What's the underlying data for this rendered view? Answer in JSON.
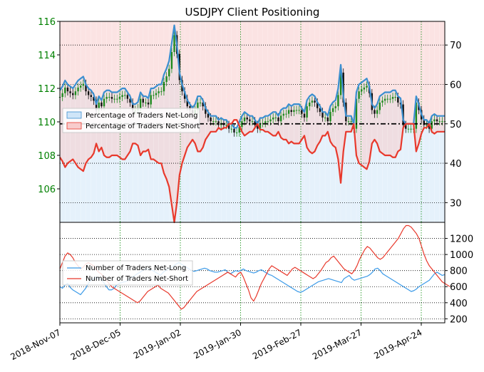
{
  "chart_data": [
    {
      "type": "line",
      "title": "USDJPY Client Positioning",
      "x_ticks": [
        "2018-Nov-07",
        "2018-Dec-05",
        "2019-Jan-02",
        "2019-Jan-30",
        "2019-Feb-27",
        "2019-Mar-27",
        "2019-Apr-24"
      ],
      "y_left_ticks": [
        "106",
        "108",
        "110",
        "112",
        "114",
        "116"
      ],
      "y_left_range": [
        104,
        116
      ],
      "y_right_ticks": [
        "30",
        "40",
        "50",
        "60",
        "70"
      ],
      "y_right_range": [
        25,
        76
      ],
      "left_tick_color": "#008000",
      "reference_line": {
        "value": 50,
        "style": "dash-dot",
        "color": "#000000"
      },
      "legend": {
        "placement": "center-left"
      },
      "series": [
        {
          "name": "Percentage of Traders Net-Long",
          "color": "#3b8fd0",
          "fill": "#cfe5f8",
          "axis": "right",
          "values": [
            58.5,
            59.5,
            61,
            60,
            59.5,
            59,
            60,
            61,
            61.5,
            62,
            60,
            59,
            58.5,
            57.5,
            55,
            57,
            56,
            58,
            58.5,
            58.5,
            58,
            58,
            58,
            58.5,
            59,
            59,
            58,
            57,
            55,
            55,
            55.5,
            58,
            57,
            57,
            56.5,
            59,
            59,
            59.5,
            60,
            60,
            62.5,
            64,
            66,
            70.5,
            75,
            70,
            63,
            60,
            58,
            56,
            55,
            54,
            55,
            57,
            57,
            56,
            54,
            53,
            52,
            52,
            52,
            51,
            51.5,
            51,
            51,
            50,
            50,
            49,
            49,
            50.5,
            52,
            53,
            52.5,
            52,
            52,
            51,
            50,
            51.5,
            51.5,
            52,
            52,
            52.5,
            53,
            53,
            52,
            53.5,
            54,
            54,
            55,
            54.5,
            55,
            55,
            55,
            54,
            53,
            56,
            57,
            57.5,
            57,
            55.5,
            54.5,
            53,
            53,
            52,
            54.5,
            55.5,
            56,
            59,
            65,
            57,
            52,
            52,
            52,
            50,
            58,
            60,
            60.5,
            61,
            61.5,
            59.5,
            55,
            54,
            55,
            57,
            57.5,
            58,
            58,
            58,
            58.5,
            58.5,
            57,
            56.5,
            51,
            50,
            50,
            50,
            50,
            57,
            55,
            52.5,
            51,
            51,
            50,
            52,
            52.5,
            52,
            52,
            52,
            52
          ]
        },
        {
          "name": "Percentage of Traders Net-Short",
          "color": "#e8392c",
          "fill": "#f8cccc",
          "axis": "right",
          "values": [
            41.5,
            40.5,
            39,
            40,
            40.5,
            41,
            40,
            39,
            38.5,
            38,
            40,
            41,
            41.5,
            42.5,
            45,
            43,
            44,
            42,
            41.5,
            41.5,
            42,
            42,
            42,
            41.5,
            41,
            41,
            42,
            43,
            45,
            45,
            44.5,
            42,
            43,
            43,
            43.5,
            41,
            41,
            40.5,
            40,
            40,
            37.5,
            36,
            34,
            29.5,
            25,
            30,
            37,
            40,
            42,
            44,
            45,
            46,
            45,
            43,
            43,
            44,
            46,
            47,
            48,
            48,
            48,
            49,
            48.5,
            49,
            49,
            50,
            50,
            51,
            51,
            49.5,
            48,
            47,
            47.5,
            48,
            48,
            49,
            50,
            48.5,
            48.5,
            48,
            48,
            47.5,
            47,
            47,
            48,
            46.5,
            46,
            46,
            45,
            45.5,
            45,
            45,
            45,
            46,
            47,
            44,
            43,
            42.5,
            43,
            44.5,
            45.5,
            47,
            47,
            48,
            45.5,
            44.5,
            44,
            41,
            35,
            43,
            48,
            48,
            48,
            50,
            42,
            40,
            39.5,
            39,
            38.5,
            40.5,
            45,
            46,
            45,
            43,
            42.5,
            42,
            42,
            42,
            41.5,
            41.5,
            43,
            43.5,
            49,
            50,
            50,
            50,
            50,
            43,
            45,
            47.5,
            49,
            49,
            50,
            48,
            47.5,
            48,
            48,
            48,
            48
          ]
        }
      ]
    },
    {
      "type": "line",
      "y_right_ticks": [
        "200",
        "400",
        "600",
        "800",
        "1000",
        "1200"
      ],
      "y_right_range": [
        150,
        1400
      ],
      "legend": {
        "placement": "top-left"
      },
      "series": [
        {
          "name": "Number of Traders Net-Long",
          "color": "#3b9ae8",
          "values": [
            600,
            580,
            620,
            640,
            590,
            560,
            540,
            520,
            500,
            540,
            580,
            640,
            680,
            700,
            720,
            700,
            690,
            650,
            600,
            560,
            560,
            580,
            620,
            640,
            650,
            660,
            670,
            700,
            720,
            740,
            760,
            780,
            800,
            820,
            820,
            810,
            800,
            780,
            760,
            740,
            780,
            800,
            820,
            830,
            860,
            880,
            900,
            880,
            860,
            840,
            820,
            800,
            790,
            800,
            810,
            820,
            830,
            820,
            800,
            790,
            780,
            780,
            790,
            800,
            810,
            780,
            760,
            780,
            800,
            790,
            800,
            820,
            800,
            790,
            780,
            770,
            780,
            800,
            810,
            790,
            770,
            750,
            740,
            720,
            700,
            680,
            660,
            640,
            620,
            600,
            580,
            560,
            540,
            530,
            540,
            560,
            580,
            600,
            620,
            640,
            660,
            670,
            680,
            690,
            700,
            690,
            680,
            670,
            660,
            650,
            700,
            720,
            740,
            700,
            680,
            690,
            700,
            710,
            720,
            730,
            750,
            780,
            820,
            830,
            800,
            760,
            740,
            720,
            700,
            680,
            660,
            640,
            620,
            600,
            580,
            560,
            540,
            550,
            570,
            600,
            620,
            640,
            660,
            680,
            720,
            760,
            780,
            760,
            740,
            750
          ]
        },
        {
          "name": "Number of Traders Net-Short",
          "color": "#e8392c",
          "values": [
            820,
            900,
            980,
            1020,
            1000,
            960,
            900,
            860,
            820,
            840,
            880,
            900,
            880,
            860,
            820,
            780,
            760,
            720,
            680,
            640,
            600,
            580,
            560,
            540,
            520,
            500,
            480,
            460,
            440,
            420,
            400,
            420,
            460,
            500,
            540,
            560,
            580,
            600,
            620,
            580,
            560,
            540,
            520,
            480,
            440,
            400,
            360,
            320,
            340,
            380,
            420,
            460,
            500,
            540,
            560,
            580,
            600,
            620,
            640,
            660,
            680,
            700,
            720,
            740,
            760,
            780,
            760,
            740,
            720,
            760,
            780,
            720,
            640,
            560,
            460,
            420,
            480,
            560,
            640,
            700,
            760,
            820,
            860,
            840,
            820,
            800,
            780,
            760,
            740,
            780,
            820,
            840,
            820,
            800,
            780,
            760,
            740,
            720,
            700,
            720,
            760,
            800,
            850,
            900,
            920,
            960,
            980,
            940,
            900,
            860,
            820,
            800,
            780,
            760,
            800,
            860,
            940,
            1000,
            1060,
            1100,
            1080,
            1040,
            1000,
            960,
            940,
            960,
            1000,
            1040,
            1080,
            1120,
            1160,
            1200,
            1260,
            1320,
            1360,
            1360,
            1340,
            1300,
            1260,
            1200,
            1100,
            1000,
            920,
            860,
            820,
            780,
            740,
            700,
            660,
            640,
            620,
            600
          ]
        }
      ]
    }
  ]
}
